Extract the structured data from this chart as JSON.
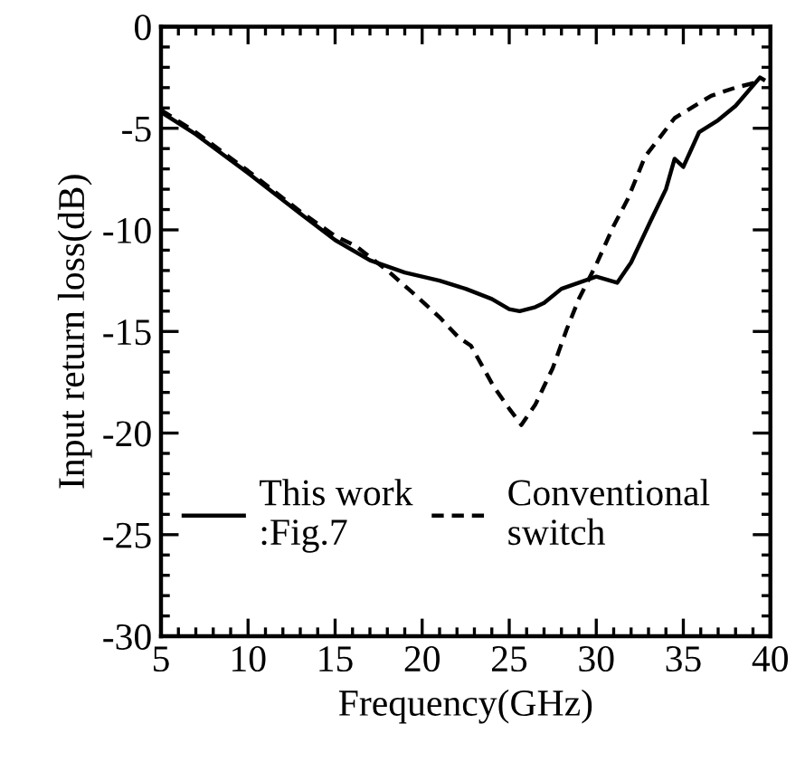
{
  "chart_data": {
    "type": "line",
    "xlabel": "Frequency(GHz)",
    "ylabel": "Input return loss(dB)",
    "xlim": [
      5,
      40
    ],
    "ylim": [
      -30,
      0
    ],
    "xticks": [
      5,
      10,
      15,
      20,
      25,
      30,
      35,
      40
    ],
    "yticks": [
      -30,
      -25,
      -20,
      -15,
      -10,
      -5,
      0
    ],
    "grid": false,
    "legend": "bottom left",
    "series": [
      {
        "name": "This work\n:Fig.7",
        "color": "#000000",
        "line_style": "solid",
        "x": [
          5,
          7,
          10,
          13,
          15,
          17,
          19,
          21,
          22.5,
          24,
          25,
          25.6,
          26.5,
          27,
          28,
          29,
          30,
          31.2,
          32,
          33.1,
          34,
          34.5,
          35,
          35.9,
          37,
          38,
          39.4,
          39.6
        ],
        "values": [
          -4.2,
          -5.3,
          -7.2,
          -9.2,
          -10.5,
          -11.5,
          -12.1,
          -12.5,
          -12.9,
          -13.4,
          -13.9,
          -14,
          -13.8,
          -13.6,
          -12.9,
          -12.6,
          -12.3,
          -12.6,
          -11.6,
          -9.6,
          -8,
          -6.5,
          -6.9,
          -5.2,
          -4.6,
          -3.9,
          -2.5,
          -2.6
        ]
      },
      {
        "name": "Conventional\nswitch",
        "color": "#000000",
        "line_style": "dashed",
        "x": [
          5,
          7,
          10,
          13,
          15,
          16.2,
          18,
          19.6,
          21,
          22.1,
          22.8,
          24.1,
          25,
          25.7,
          26.5,
          27.5,
          28.3,
          29,
          30,
          31,
          31.8,
          32.8,
          34.5,
          36.6,
          38,
          39.4
        ],
        "values": [
          -4.1,
          -5.2,
          -7.1,
          -9.1,
          -10.3,
          -10.8,
          -12,
          -13.2,
          -14.3,
          -15.3,
          -15.7,
          -17.7,
          -18.8,
          -19.6,
          -18.6,
          -16.8,
          -14.9,
          -13.4,
          -11.7,
          -9.8,
          -8.5,
          -6.4,
          -4.5,
          -3.4,
          -3,
          -2.7
        ]
      }
    ]
  }
}
